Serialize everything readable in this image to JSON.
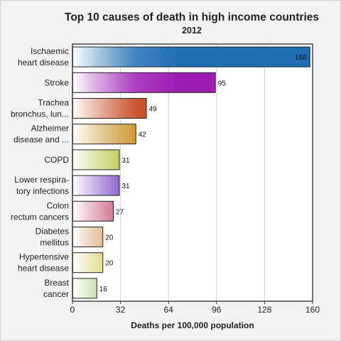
{
  "chart_data": {
    "type": "bar",
    "orientation": "horizontal",
    "title": "Top 10 causes of death in high income countries",
    "subtitle": "2012",
    "xlabel": "Deaths per 100,000 population",
    "ylabel": "",
    "xlim": [
      0,
      160
    ],
    "xticks": [
      0,
      32,
      64,
      96,
      128,
      160
    ],
    "grid": true,
    "categories": [
      [
        "Ischaemic",
        "heart disease"
      ],
      [
        "Stroke"
      ],
      [
        "Trachea",
        "bronchus, lun..."
      ],
      [
        "Alzheimer",
        "disease and ..."
      ],
      [
        "COPD"
      ],
      [
        "Lower respira-",
        "tory infections"
      ],
      [
        "Colon",
        "rectum cancers"
      ],
      [
        "Diabetes",
        "mellitus"
      ],
      [
        "Hypertensive",
        "heart disease"
      ],
      [
        "Breast",
        "cancer"
      ]
    ],
    "values": [
      158,
      95,
      49,
      42,
      31,
      31,
      27,
      20,
      20,
      16
    ],
    "colors": [
      "#1f6eb4",
      "#9c1cb4",
      "#c2380e",
      "#c4870e",
      "#a4b40e",
      "#5a1cb4",
      "#b41c46",
      "#c4640e",
      "#c4b00e",
      "#6eae20"
    ]
  }
}
